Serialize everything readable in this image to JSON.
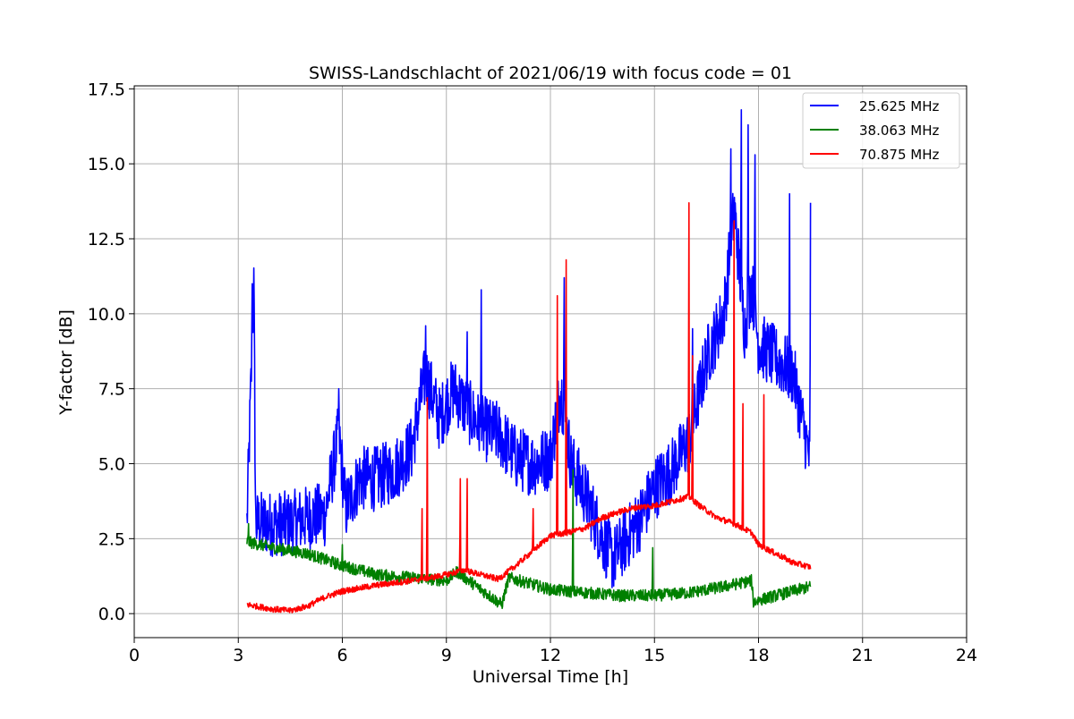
{
  "chart_data": {
    "type": "line",
    "title": "SWISS-Landschlacht of 2021/06/19 with focus code = 01",
    "xlabel": "Universal Time [h]",
    "ylabel": "Y-factor [dB]",
    "xlim": [
      0,
      24
    ],
    "ylim": [
      -0.8,
      17.6
    ],
    "xticks": [
      0,
      3,
      6,
      9,
      12,
      15,
      18,
      21,
      24
    ],
    "xtick_labels": [
      "0",
      "3",
      "6",
      "9",
      "12",
      "15",
      "18",
      "21",
      "24"
    ],
    "yticks": [
      0,
      2.5,
      5,
      7.5,
      10,
      12.5,
      15,
      17.5
    ],
    "ytick_labels": [
      "0.0",
      "2.5",
      "5.0",
      "7.5",
      "10.0",
      "12.5",
      "15.0",
      "17.5"
    ],
    "grid": true,
    "legend_position": "top-right",
    "series": [
      {
        "name": "25.625 MHz",
        "color": "#0000ff",
        "x": [
          3.25,
          3.45,
          3.5,
          4.0,
          4.5,
          5.0,
          5.5,
          5.9,
          6.1,
          6.5,
          7.0,
          7.5,
          8.0,
          8.4,
          8.8,
          9.2,
          9.6,
          10.0,
          10.5,
          11.0,
          11.5,
          12.0,
          12.3,
          12.6,
          13.0,
          13.5,
          13.8,
          14.2,
          14.6,
          15.0,
          15.5,
          16.0,
          16.5,
          17.0,
          17.3,
          17.6,
          17.8,
          18.0,
          18.5,
          19.0,
          19.5
        ],
        "values": [
          3.0,
          11.0,
          3.0,
          3.0,
          3.0,
          3.2,
          3.3,
          6.0,
          3.5,
          4.5,
          4.5,
          4.8,
          5.5,
          8.0,
          6.5,
          7.5,
          6.8,
          6.2,
          6.0,
          5.2,
          5.0,
          5.2,
          7.5,
          5.0,
          4.0,
          2.5,
          1.8,
          2.5,
          3.2,
          4.2,
          4.8,
          5.8,
          8.5,
          10.0,
          13.5,
          9.5,
          11.0,
          9.0,
          8.5,
          8.0,
          5.0
        ],
        "peaks_x": [
          3.4,
          5.9,
          8.4,
          9.6,
          10.0,
          12.4,
          16.1,
          17.2,
          17.5,
          17.7,
          17.9,
          18.9,
          19.5
        ],
        "peaks_y": [
          11.0,
          7.5,
          9.6,
          9.4,
          10.8,
          11.2,
          9.5,
          15.5,
          16.8,
          16.3,
          15.3,
          14.0,
          13.7
        ],
        "noise_amplitude": 1.1
      },
      {
        "name": "38.063 MHz",
        "color": "#008000",
        "x": [
          3.25,
          4.0,
          5.0,
          6.0,
          7.0,
          8.0,
          9.0,
          9.3,
          10.0,
          10.6,
          10.8,
          12.0,
          13.0,
          14.0,
          15.0,
          16.0,
          17.0,
          17.8,
          17.85,
          18.5,
          19.5
        ],
        "values": [
          2.4,
          2.2,
          2.0,
          1.6,
          1.3,
          1.2,
          1.1,
          1.4,
          0.8,
          0.3,
          1.2,
          0.8,
          0.7,
          0.6,
          0.6,
          0.7,
          0.9,
          1.1,
          0.4,
          0.6,
          0.9
        ],
        "peaks_x": [
          3.3,
          6.0,
          12.65,
          14.95
        ],
        "peaks_y": [
          3.0,
          2.3,
          4.8,
          2.2
        ],
        "noise_amplitude": 0.2
      },
      {
        "name": "70.875 MHz",
        "color": "#ff0000",
        "x": [
          3.25,
          4.0,
          4.5,
          5.0,
          5.5,
          6.0,
          7.0,
          8.0,
          8.8,
          9.5,
          10.0,
          10.5,
          11.0,
          11.5,
          12.0,
          12.5,
          13.0,
          13.5,
          14.0,
          14.5,
          15.0,
          15.5,
          16.0,
          16.3,
          16.8,
          17.3,
          17.8,
          18.0,
          18.5,
          19.0,
          19.5
        ],
        "values": [
          0.3,
          0.15,
          0.1,
          0.25,
          0.55,
          0.75,
          0.95,
          1.1,
          1.25,
          1.45,
          1.3,
          1.15,
          1.6,
          2.1,
          2.6,
          2.7,
          2.85,
          3.2,
          3.4,
          3.55,
          3.6,
          3.75,
          3.9,
          3.6,
          3.2,
          3.0,
          2.7,
          2.3,
          2.0,
          1.7,
          1.55
        ],
        "peaks_x": [
          8.3,
          8.45,
          9.4,
          9.6,
          11.5,
          12.2,
          12.45,
          16.0,
          16.1,
          17.3,
          17.55,
          18.15
        ],
        "peaks_y": [
          3.5,
          7.2,
          4.5,
          4.5,
          3.5,
          10.6,
          11.8,
          13.7,
          8.6,
          13.1,
          7.0,
          7.3
        ],
        "noise_amplitude": 0.1
      }
    ]
  }
}
